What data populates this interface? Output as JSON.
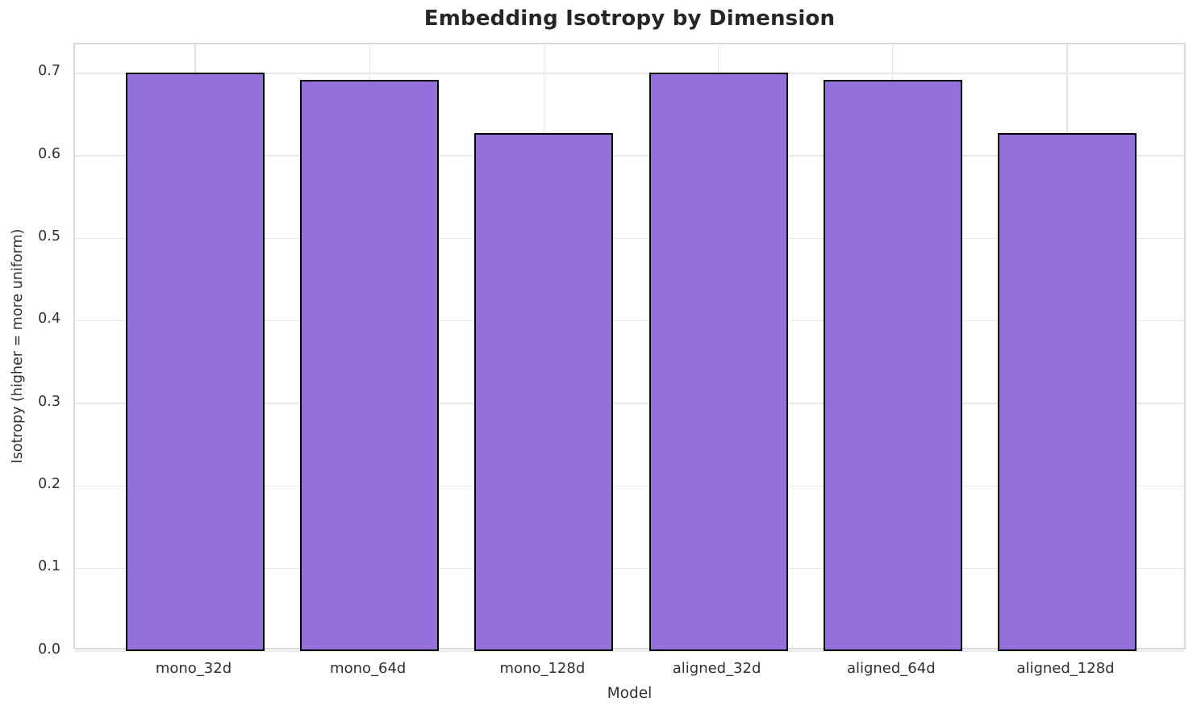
{
  "chart_data": {
    "type": "bar",
    "title": "Embedding Isotropy by Dimension",
    "xlabel": "Model",
    "ylabel": "Isotropy (higher = more uniform)",
    "categories": [
      "mono_32d",
      "mono_64d",
      "mono_128d",
      "aligned_32d",
      "aligned_64d",
      "aligned_128d"
    ],
    "values": [
      0.701,
      0.692,
      0.627,
      0.701,
      0.692,
      0.627
    ],
    "ylim": [
      0,
      0.735
    ],
    "yticks": [
      0.0,
      0.1,
      0.2,
      0.3,
      0.4,
      0.5,
      0.6,
      0.7
    ],
    "ytick_labels": [
      "0.0",
      "0.1",
      "0.2",
      "0.3",
      "0.4",
      "0.5",
      "0.6",
      "0.7"
    ],
    "grid": true,
    "legend": false,
    "bar_color": "#9370DB",
    "bar_edge_color": "#000000",
    "grid_color": "#e9e9e9",
    "title_color": "#262626",
    "tick_color": "#303030"
  }
}
